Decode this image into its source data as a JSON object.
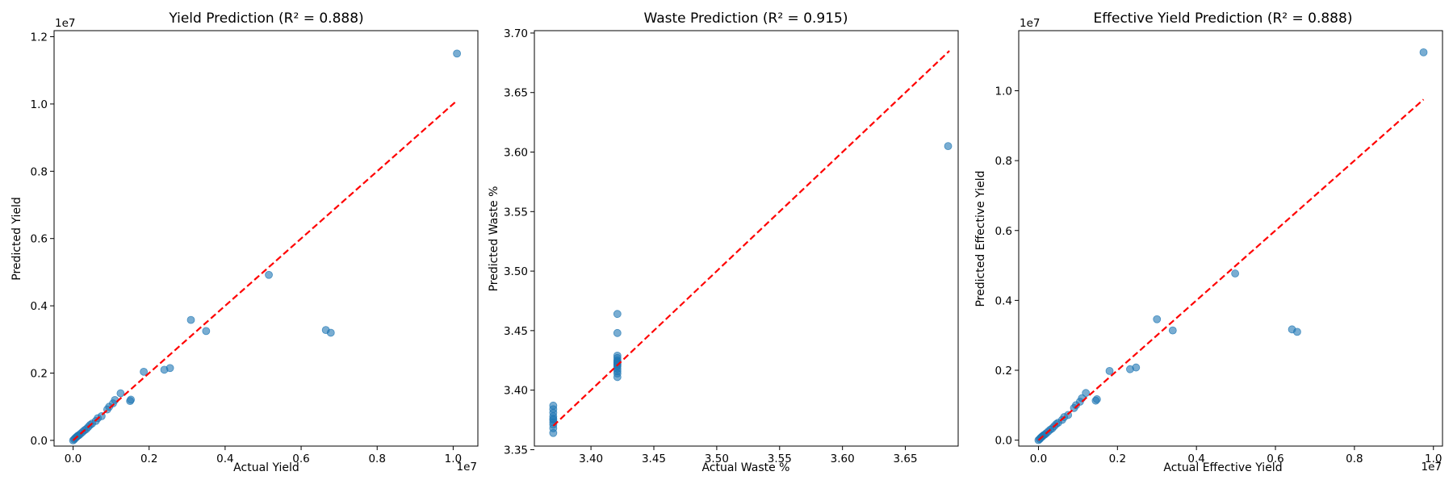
{
  "colors": {
    "points": "#1f77b4",
    "ideal_line": "#ff0000"
  },
  "chart_data": [
    {
      "type": "scatter",
      "title": "Yield Prediction (R² = 0.888)",
      "xlabel": "Actual Yield",
      "ylabel": "Predicted Yield",
      "x_offset_label": "1e7",
      "y_offset_label": "1e7",
      "xlim": [
        -0.05,
        1.065
      ],
      "ylim": [
        -0.017,
        1.218
      ],
      "xticks": [
        0.0,
        0.2,
        0.4,
        0.6,
        0.8,
        1.0
      ],
      "xtick_labels": [
        "0.0",
        "0.2",
        "0.4",
        "0.6",
        "0.8",
        "1.0"
      ],
      "yticks": [
        0.0,
        0.2,
        0.4,
        0.6,
        0.8,
        1.0,
        1.2
      ],
      "ytick_labels": [
        "0.0",
        "0.2",
        "0.4",
        "0.6",
        "0.8",
        "1.0",
        "1.2"
      ],
      "ideal_line": [
        [
          0.0,
          0.0
        ],
        [
          1.01,
          1.01
        ]
      ],
      "points": [
        [
          0.0,
          0.0
        ],
        [
          0.003,
          0.003
        ],
        [
          0.005,
          0.006
        ],
        [
          0.008,
          0.009
        ],
        [
          0.01,
          0.011
        ],
        [
          0.013,
          0.014
        ],
        [
          0.016,
          0.016
        ],
        [
          0.02,
          0.02
        ],
        [
          0.025,
          0.025
        ],
        [
          0.03,
          0.03
        ],
        [
          0.035,
          0.034
        ],
        [
          0.04,
          0.04
        ],
        [
          0.045,
          0.046
        ],
        [
          0.05,
          0.05
        ],
        [
          0.06,
          0.058
        ],
        [
          0.065,
          0.066
        ],
        [
          0.075,
          0.072
        ],
        [
          0.09,
          0.092
        ],
        [
          0.095,
          0.1
        ],
        [
          0.105,
          0.11
        ],
        [
          0.11,
          0.12
        ],
        [
          0.125,
          0.14
        ],
        [
          0.15,
          0.117
        ],
        [
          0.152,
          0.121
        ],
        [
          0.186,
          0.204
        ],
        [
          0.24,
          0.21
        ],
        [
          0.255,
          0.215
        ],
        [
          0.31,
          0.358
        ],
        [
          0.35,
          0.325
        ],
        [
          0.515,
          0.492
        ],
        [
          0.665,
          0.328
        ],
        [
          0.678,
          0.32
        ],
        [
          1.01,
          1.15
        ]
      ]
    },
    {
      "type": "scatter",
      "title": "Waste Prediction (R² = 0.915)",
      "xlabel": "Actual Waste %",
      "ylabel": "Predicted Waste %",
      "xlim": [
        3.355,
        3.692
      ],
      "ylim": [
        3.353,
        3.702
      ],
      "xticks": [
        3.4,
        3.45,
        3.5,
        3.55,
        3.6,
        3.65
      ],
      "xtick_labels": [
        "3.40",
        "3.45",
        "3.50",
        "3.55",
        "3.60",
        "3.65"
      ],
      "yticks": [
        3.35,
        3.4,
        3.45,
        3.5,
        3.55,
        3.6,
        3.65,
        3.7
      ],
      "ytick_labels": [
        "3.35",
        "3.40",
        "3.45",
        "3.50",
        "3.55",
        "3.60",
        "3.65",
        "3.70"
      ],
      "ideal_line": [
        [
          3.37,
          3.37
        ],
        [
          3.685,
          3.685
        ]
      ],
      "points": [
        [
          3.37,
          3.364
        ],
        [
          3.37,
          3.368
        ],
        [
          3.37,
          3.371
        ],
        [
          3.37,
          3.373
        ],
        [
          3.37,
          3.375
        ],
        [
          3.37,
          3.376
        ],
        [
          3.37,
          3.378
        ],
        [
          3.37,
          3.381
        ],
        [
          3.37,
          3.384
        ],
        [
          3.37,
          3.387
        ],
        [
          3.421,
          3.411
        ],
        [
          3.421,
          3.414
        ],
        [
          3.421,
          3.416
        ],
        [
          3.421,
          3.418
        ],
        [
          3.421,
          3.42
        ],
        [
          3.421,
          3.421
        ],
        [
          3.421,
          3.422
        ],
        [
          3.421,
          3.423
        ],
        [
          3.421,
          3.424
        ],
        [
          3.421,
          3.425
        ],
        [
          3.421,
          3.427
        ],
        [
          3.421,
          3.429
        ],
        [
          3.421,
          3.448
        ],
        [
          3.421,
          3.464
        ],
        [
          3.684,
          3.605
        ]
      ]
    },
    {
      "type": "scatter",
      "title": "Effective Yield Prediction (R² = 0.888)",
      "xlabel": "Actual Effective Yield",
      "ylabel": "Predicted Effective Yield",
      "x_offset_label": "1e7",
      "y_offset_label": "1e7",
      "xlim": [
        -0.05,
        1.023
      ],
      "ylim": [
        -0.017,
        1.172
      ],
      "xticks": [
        0.0,
        0.2,
        0.4,
        0.6,
        0.8,
        1.0
      ],
      "xtick_labels": [
        "0.0",
        "0.2",
        "0.4",
        "0.6",
        "0.8",
        "1.0"
      ],
      "yticks": [
        0.0,
        0.2,
        0.4,
        0.6,
        0.8,
        1.0
      ],
      "ytick_labels": [
        "0.0",
        "0.2",
        "0.4",
        "0.6",
        "0.8",
        "1.0"
      ],
      "ideal_line": [
        [
          0.0,
          0.0
        ],
        [
          0.975,
          0.975
        ]
      ],
      "points": [
        [
          0.0,
          0.0
        ],
        [
          0.003,
          0.003
        ],
        [
          0.005,
          0.006
        ],
        [
          0.008,
          0.009
        ],
        [
          0.01,
          0.011
        ],
        [
          0.013,
          0.014
        ],
        [
          0.016,
          0.016
        ],
        [
          0.02,
          0.02
        ],
        [
          0.025,
          0.025
        ],
        [
          0.03,
          0.03
        ],
        [
          0.035,
          0.034
        ],
        [
          0.04,
          0.04
        ],
        [
          0.045,
          0.046
        ],
        [
          0.05,
          0.05
        ],
        [
          0.06,
          0.058
        ],
        [
          0.065,
          0.066
        ],
        [
          0.075,
          0.072
        ],
        [
          0.09,
          0.092
        ],
        [
          0.095,
          0.1
        ],
        [
          0.105,
          0.11
        ],
        [
          0.11,
          0.12
        ],
        [
          0.12,
          0.135
        ],
        [
          0.145,
          0.113
        ],
        [
          0.148,
          0.117
        ],
        [
          0.18,
          0.198
        ],
        [
          0.232,
          0.203
        ],
        [
          0.247,
          0.208
        ],
        [
          0.3,
          0.346
        ],
        [
          0.34,
          0.314
        ],
        [
          0.498,
          0.477
        ],
        [
          0.642,
          0.317
        ],
        [
          0.655,
          0.31
        ],
        [
          0.975,
          1.11
        ]
      ]
    }
  ]
}
